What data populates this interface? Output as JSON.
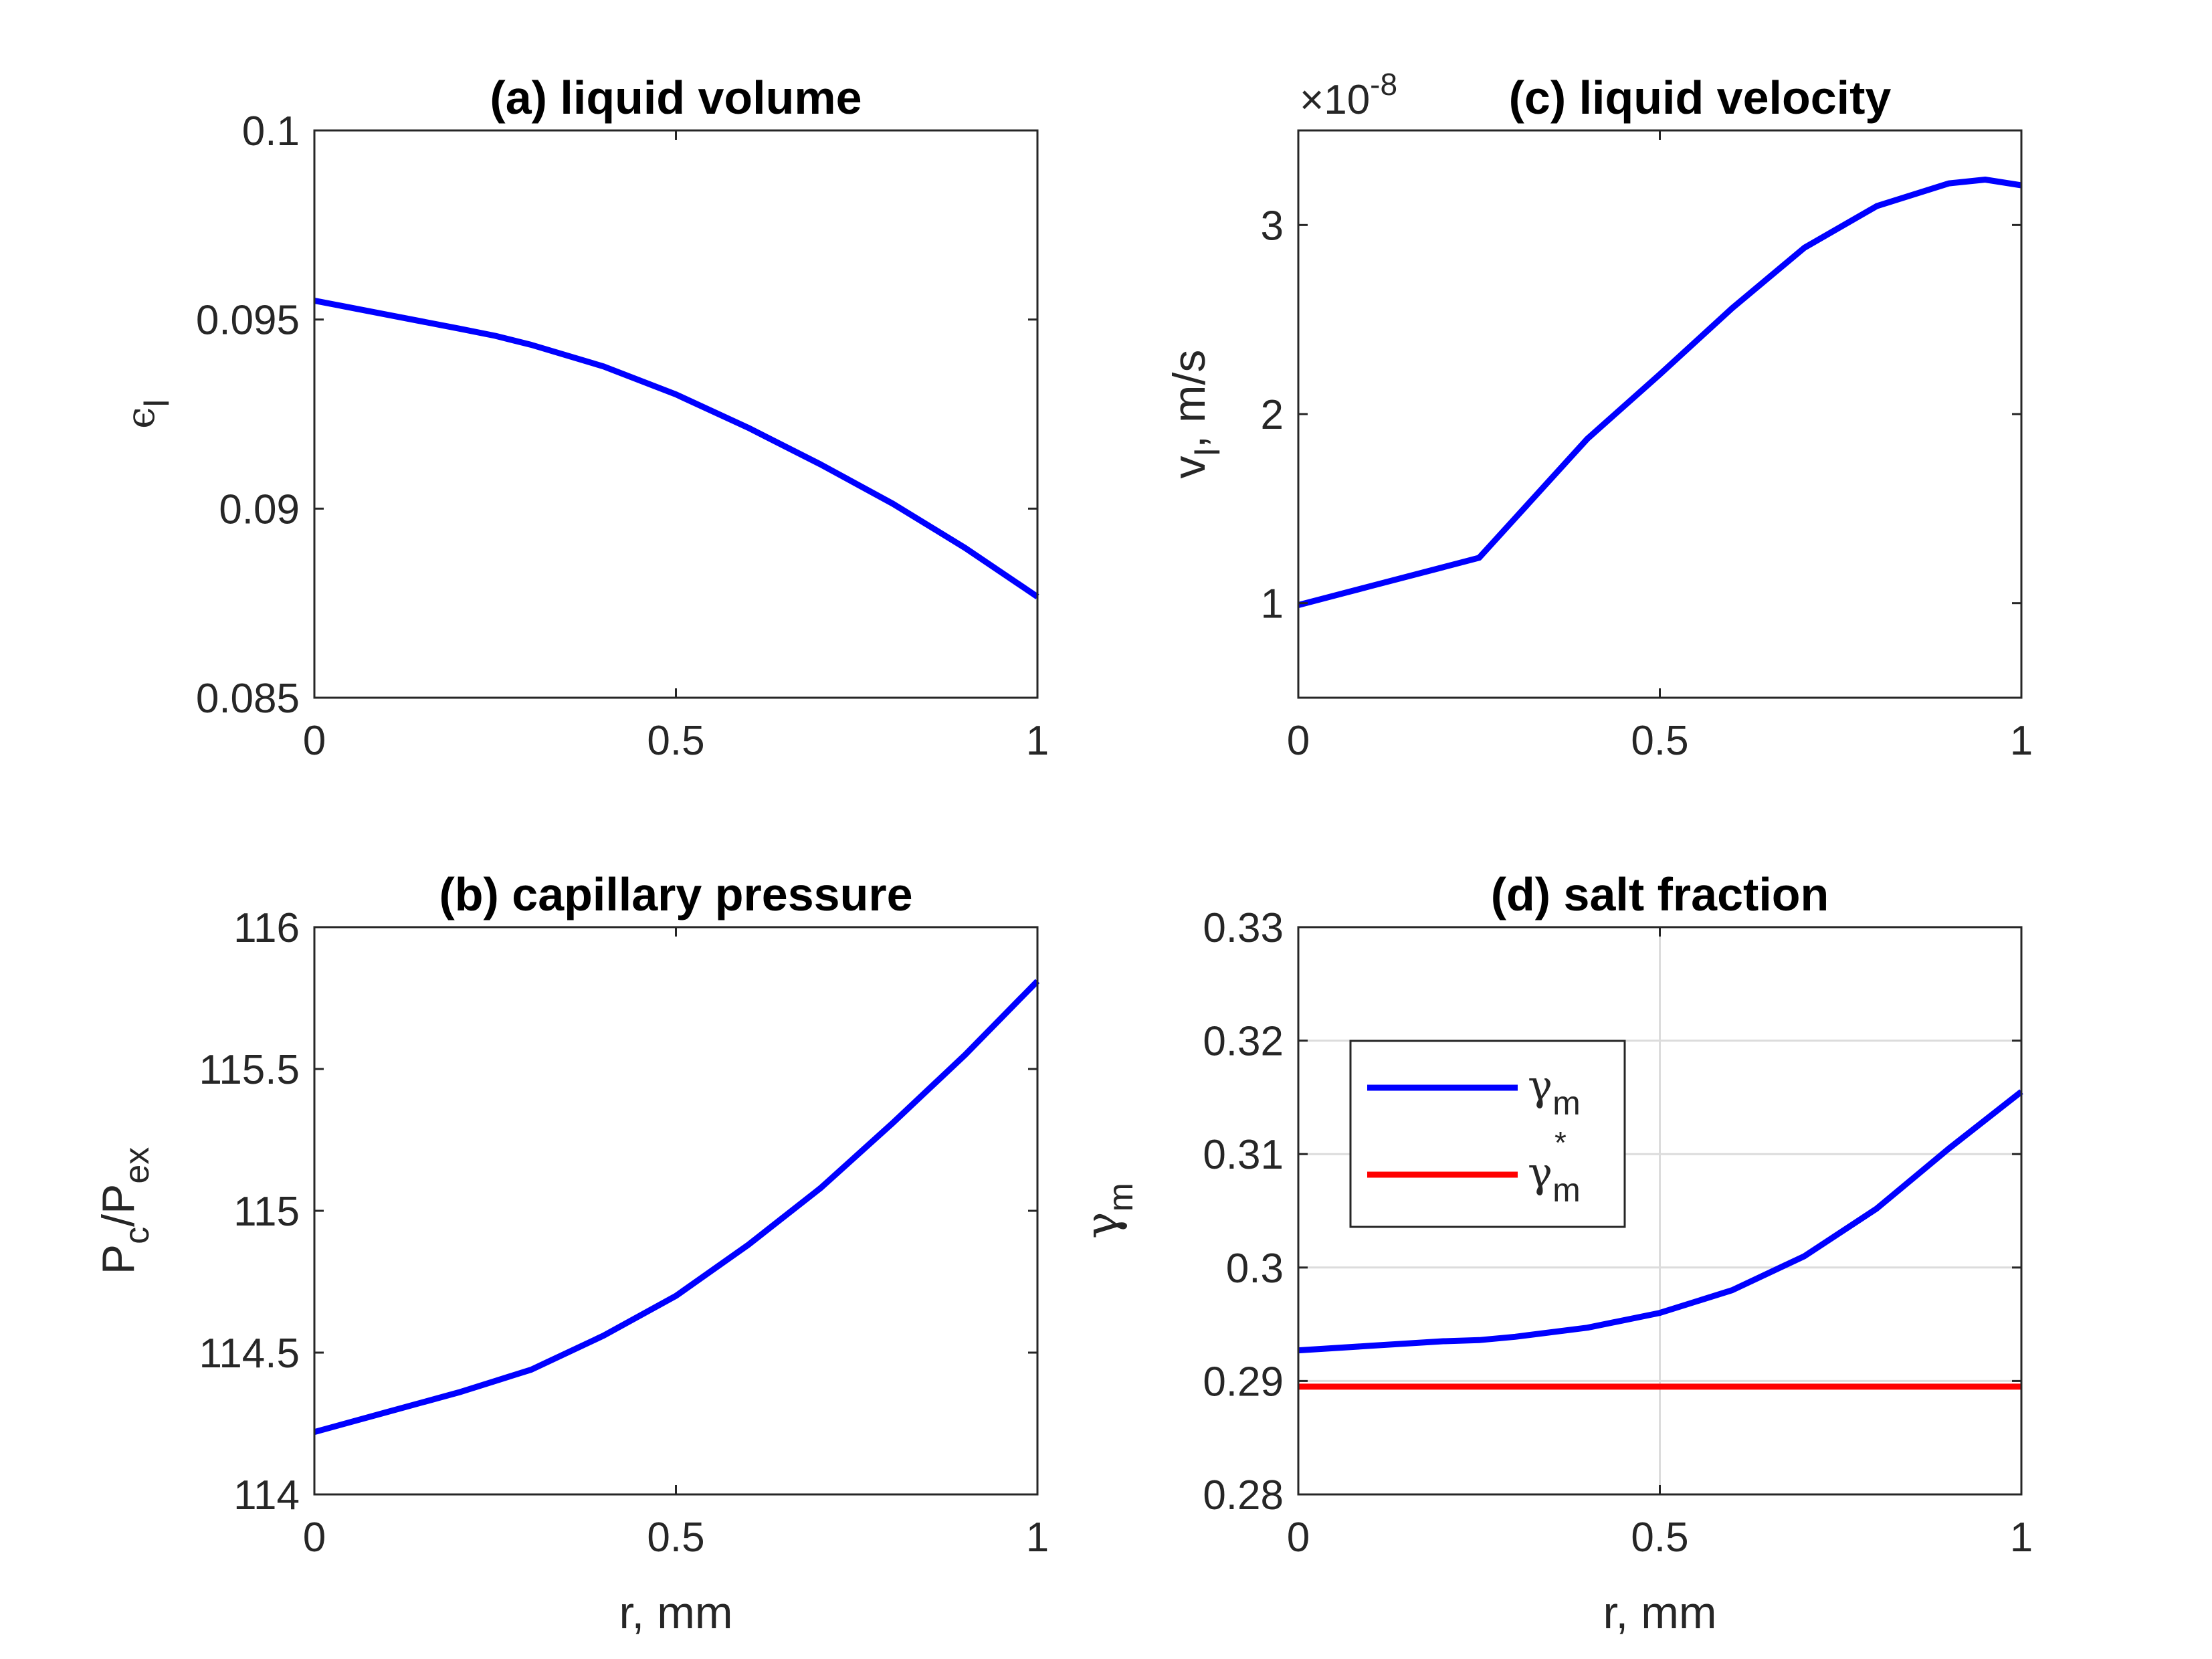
{
  "chart_data": [
    {
      "id": "a",
      "type": "line",
      "title": "(a) liquid volume",
      "xlabel": "",
      "ylabel": {
        "main": "ϵ",
        "sub": "l"
      },
      "xlim": [
        0,
        1
      ],
      "ylim": [
        0.085,
        0.1
      ],
      "xticks": [
        0,
        0.5,
        1
      ],
      "xtick_labels": [
        "0",
        "0.5",
        "1"
      ],
      "yticks": [
        0.085,
        0.09,
        0.095,
        0.1
      ],
      "ytick_labels": [
        "0.085",
        "0.09",
        "0.095",
        "0.1"
      ],
      "grid": false,
      "series": [
        {
          "name": "ϵl",
          "color": "#0000ff",
          "x": [
            0,
            0.1,
            0.2,
            0.25,
            0.3,
            0.4,
            0.5,
            0.6,
            0.7,
            0.8,
            0.9,
            1.0
          ],
          "y": [
            0.0955,
            0.09513,
            0.09476,
            0.09457,
            0.09433,
            0.09376,
            0.09302,
            0.09214,
            0.09117,
            0.09013,
            0.08896,
            0.08767
          ]
        }
      ]
    },
    {
      "id": "c",
      "type": "line",
      "title": "(c) liquid velocity",
      "exponent_label": {
        "base": "×10",
        "power": "-8"
      },
      "xlabel": "",
      "ylabel": {
        "main": "v",
        "sub": "l",
        "rest": ", m/s"
      },
      "xlim": [
        0,
        1
      ],
      "ylim": [
        0.5,
        3.5
      ],
      "xticks": [
        0,
        0.5,
        1
      ],
      "xtick_labels": [
        "0",
        "0.5",
        "1"
      ],
      "yticks": [
        1,
        2,
        3
      ],
      "ytick_labels": [
        "1",
        "2",
        "3"
      ],
      "grid": false,
      "series": [
        {
          "name": "vl",
          "color": "#0000ff",
          "x": [
            0,
            0.1,
            0.2,
            0.25,
            0.3,
            0.4,
            0.5,
            0.6,
            0.7,
            0.8,
            0.9,
            0.95,
            1.0
          ],
          "y": [
            0.99,
            1.09,
            1.19,
            1.24,
            1.45,
            1.87,
            2.21,
            2.56,
            2.88,
            3.1,
            3.22,
            3.24,
            3.21
          ]
        }
      ]
    },
    {
      "id": "b",
      "type": "line",
      "title": "(b) capillary pressure",
      "xlabel": "r, mm",
      "ylabel": {
        "main": "P",
        "sub": "c",
        "rest": "/P",
        "sub2": "ex"
      },
      "xlim": [
        0,
        1
      ],
      "ylim": [
        114,
        116
      ],
      "xticks": [
        0,
        0.5,
        1
      ],
      "xtick_labels": [
        "0",
        "0.5",
        "1"
      ],
      "yticks": [
        114,
        114.5,
        115,
        115.5,
        116
      ],
      "ytick_labels": [
        "114",
        "114.5",
        "115",
        "115.5",
        "116"
      ],
      "grid": false,
      "series": [
        {
          "name": "Pc/Pex",
          "color": "#0000ff",
          "x": [
            0,
            0.1,
            0.2,
            0.25,
            0.3,
            0.4,
            0.5,
            0.6,
            0.7,
            0.8,
            0.9,
            1.0
          ],
          "y": [
            114.22,
            114.29,
            114.36,
            114.4,
            114.44,
            114.56,
            114.7,
            114.88,
            115.08,
            115.31,
            115.55,
            115.81
          ]
        }
      ]
    },
    {
      "id": "d",
      "type": "line",
      "title": "(d) salt fraction",
      "xlabel": "r, mm",
      "ylabel": {
        "main": "γ",
        "sub": "m"
      },
      "xlim": [
        0,
        1
      ],
      "ylim": [
        0.28,
        0.33
      ],
      "xticks": [
        0,
        0.5,
        1
      ],
      "xtick_labels": [
        "0",
        "0.5",
        "1"
      ],
      "yticks": [
        0.28,
        0.29,
        0.3,
        0.31,
        0.32,
        0.33
      ],
      "ytick_labels": [
        "0.28",
        "0.29",
        "0.3",
        "0.31",
        "0.32",
        "0.33"
      ],
      "grid": true,
      "legend": {
        "position": "upper-left",
        "entries": [
          {
            "main": "γ",
            "sub": "m",
            "sup": ""
          },
          {
            "main": "γ",
            "sub": "m",
            "sup": "*"
          }
        ]
      },
      "series": [
        {
          "name": "γm",
          "color": "#0000ff",
          "x": [
            0,
            0.1,
            0.2,
            0.25,
            0.3,
            0.4,
            0.5,
            0.6,
            0.7,
            0.8,
            0.9,
            1.0
          ],
          "y": [
            0.2927,
            0.2931,
            0.2935,
            0.2936,
            0.2939,
            0.2947,
            0.296,
            0.298,
            0.301,
            0.3052,
            0.3105,
            0.3155
          ]
        },
        {
          "name": "γm*",
          "color": "#ff0000",
          "x": [
            0,
            1
          ],
          "y": [
            0.2895,
            0.2895
          ]
        }
      ]
    }
  ]
}
